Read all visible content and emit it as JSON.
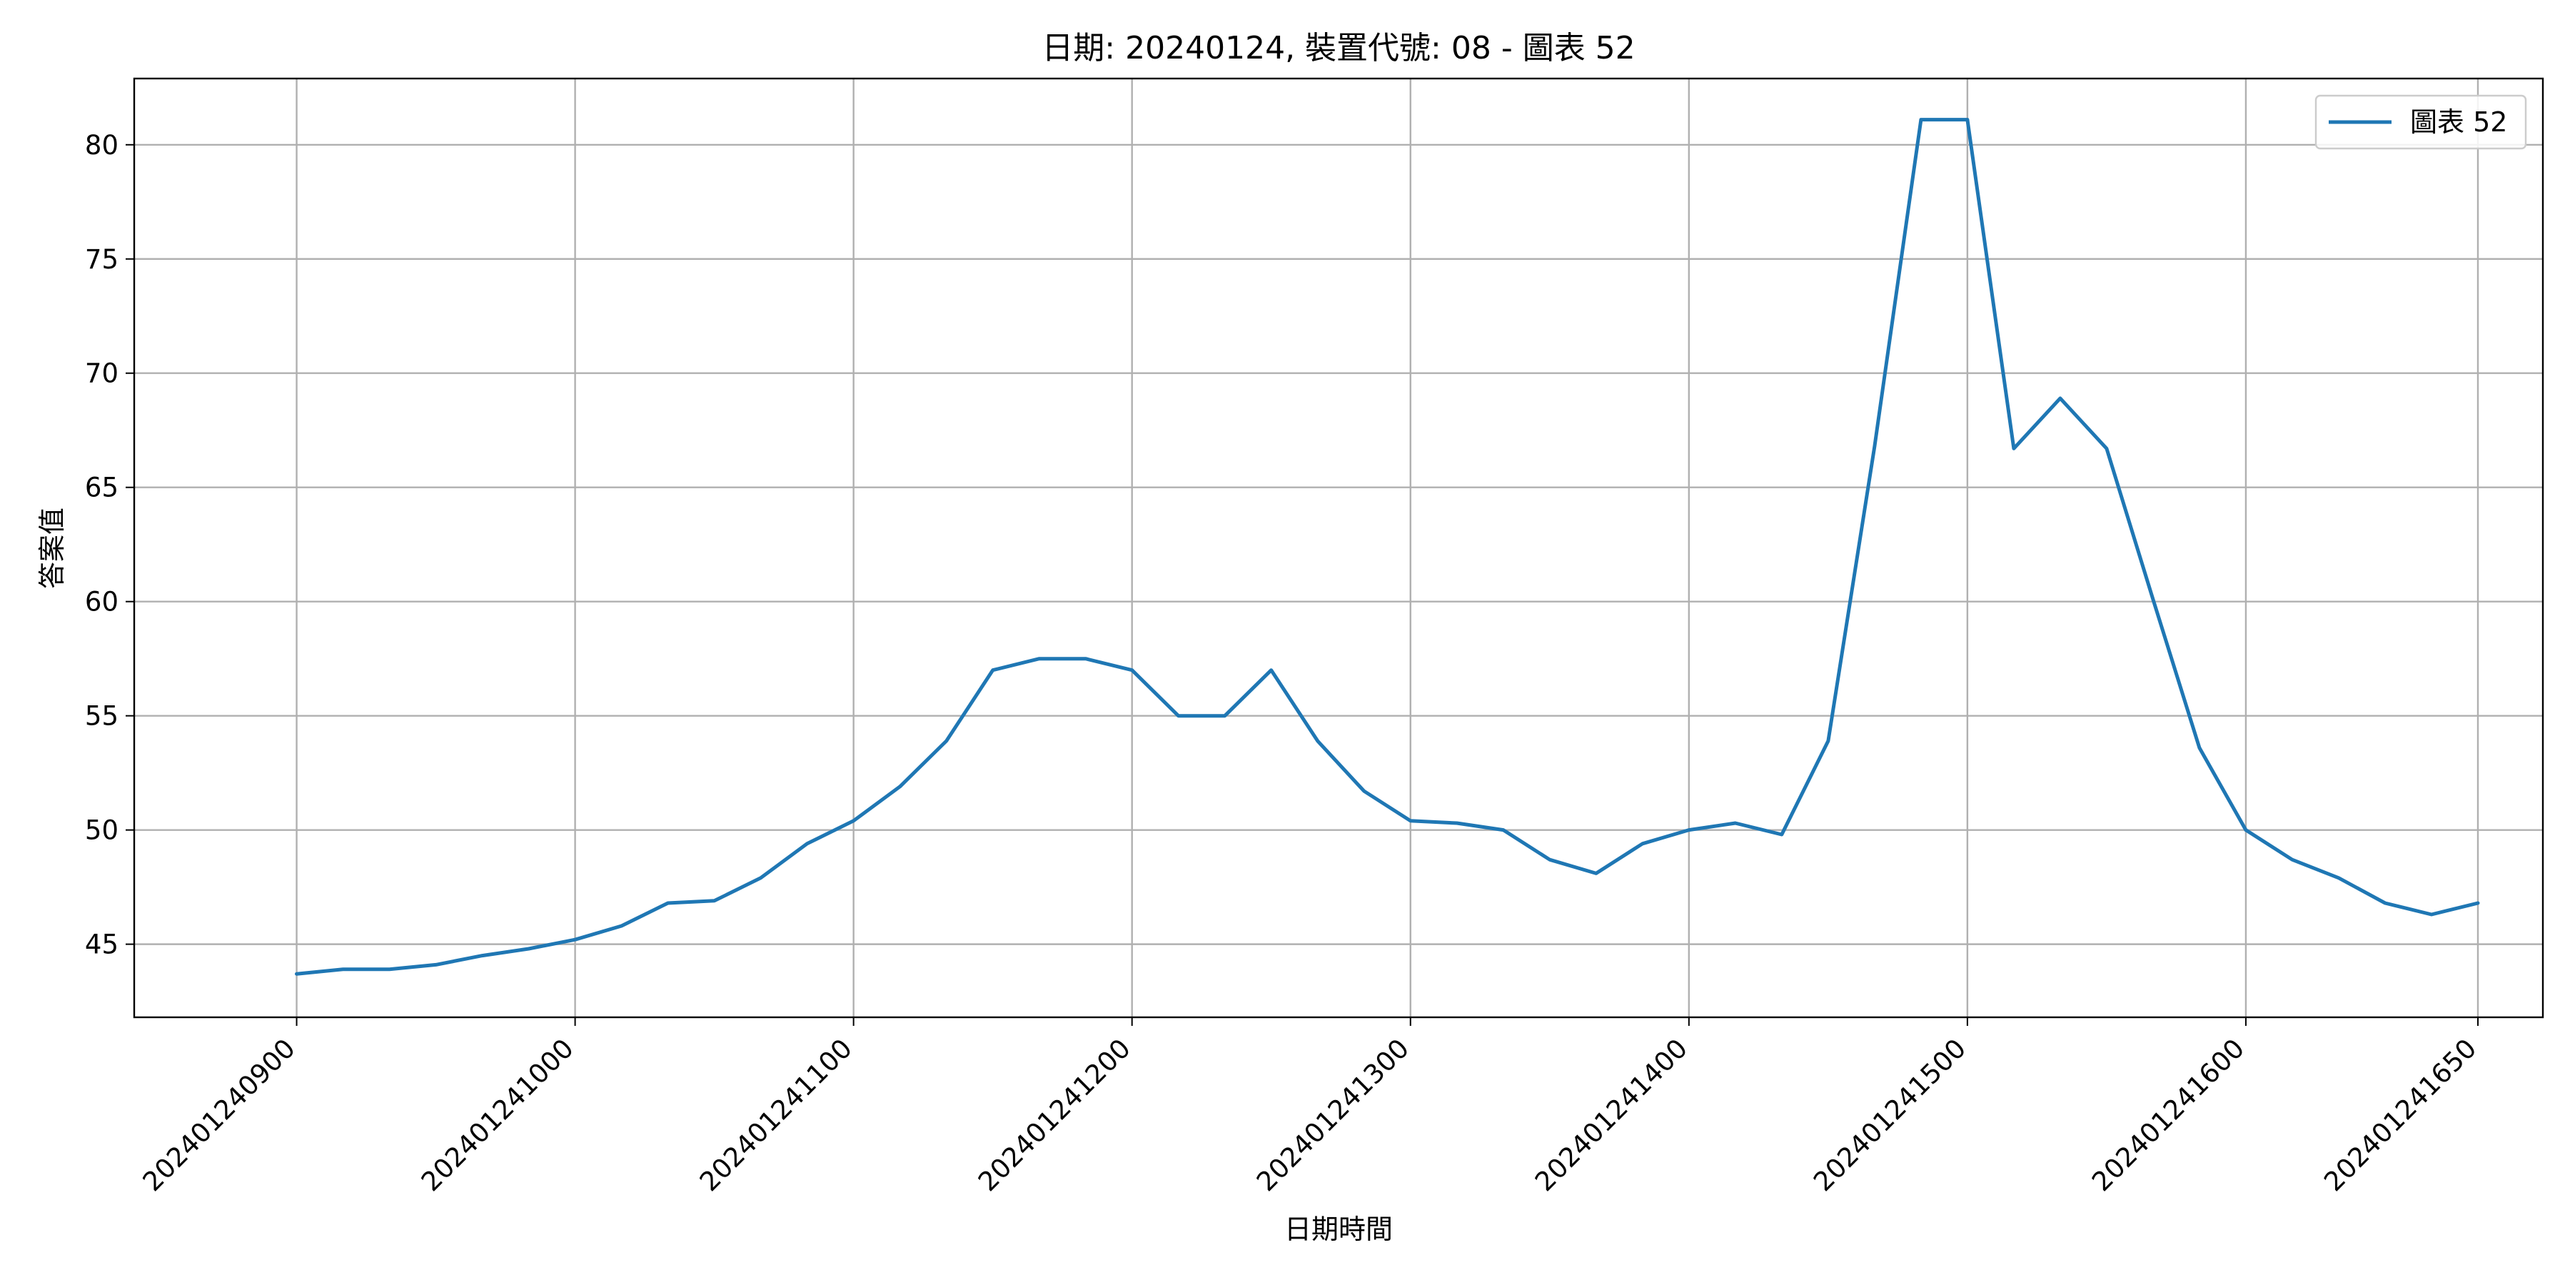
{
  "chart_data": {
    "type": "line",
    "title": "日期: 20240124, 裝置代號: 08 - 圖表 52",
    "xlabel": "日期時間",
    "ylabel": "答案值",
    "xlim": [
      -3.5,
      48.4
    ],
    "ylim": [
      41.8,
      82.9
    ],
    "x_ticks": [
      {
        "pos": 0,
        "label": "202401240900"
      },
      {
        "pos": 6,
        "label": "202401241000"
      },
      {
        "pos": 12,
        "label": "202401241100"
      },
      {
        "pos": 18,
        "label": "202401241200"
      },
      {
        "pos": 24,
        "label": "202401241300"
      },
      {
        "pos": 30,
        "label": "202401241400"
      },
      {
        "pos": 36,
        "label": "202401241500"
      },
      {
        "pos": 42,
        "label": "202401241600"
      },
      {
        "pos": 47,
        "label": "202401241650"
      }
    ],
    "y_ticks": [
      45,
      50,
      55,
      60,
      65,
      70,
      75,
      80
    ],
    "grid": true,
    "legend_position": "top-right",
    "line_color": "#1f77b4",
    "series": [
      {
        "name": "圖表 52",
        "x": [
          "202401240900",
          "202401240910",
          "202401240920",
          "202401240930",
          "202401240940",
          "202401240950",
          "202401241000",
          "202401241010",
          "202401241020",
          "202401241030",
          "202401241040",
          "202401241050",
          "202401241100",
          "202401241110",
          "202401241120",
          "202401241130",
          "202401241140",
          "202401241150",
          "202401241200",
          "202401241210",
          "202401241220",
          "202401241230",
          "202401241240",
          "202401241250",
          "202401241300",
          "202401241310",
          "202401241320",
          "202401241330",
          "202401241340",
          "202401241350",
          "202401241400",
          "202401241410",
          "202401241420",
          "202401241430",
          "202401241440",
          "202401241450",
          "202401241500",
          "202401241510",
          "202401241520",
          "202401241530",
          "202401241540",
          "202401241550",
          "202401241600",
          "202401241610",
          "202401241620",
          "202401241630",
          "202401241640",
          "202401241650"
        ],
        "values": [
          43.7,
          43.9,
          43.9,
          44.1,
          44.5,
          44.8,
          45.2,
          45.8,
          46.8,
          46.9,
          47.9,
          49.4,
          50.4,
          51.9,
          53.9,
          57.0,
          57.5,
          57.5,
          57.0,
          55.0,
          55.0,
          57.0,
          53.9,
          51.7,
          50.4,
          50.3,
          50.0,
          48.7,
          48.1,
          49.4,
          50.0,
          50.3,
          49.8,
          53.9,
          66.8,
          81.1,
          81.1,
          66.7,
          68.9,
          66.7,
          60.1,
          53.6,
          50.0,
          48.7,
          47.9,
          46.8,
          46.3,
          46.8
        ]
      }
    ]
  }
}
